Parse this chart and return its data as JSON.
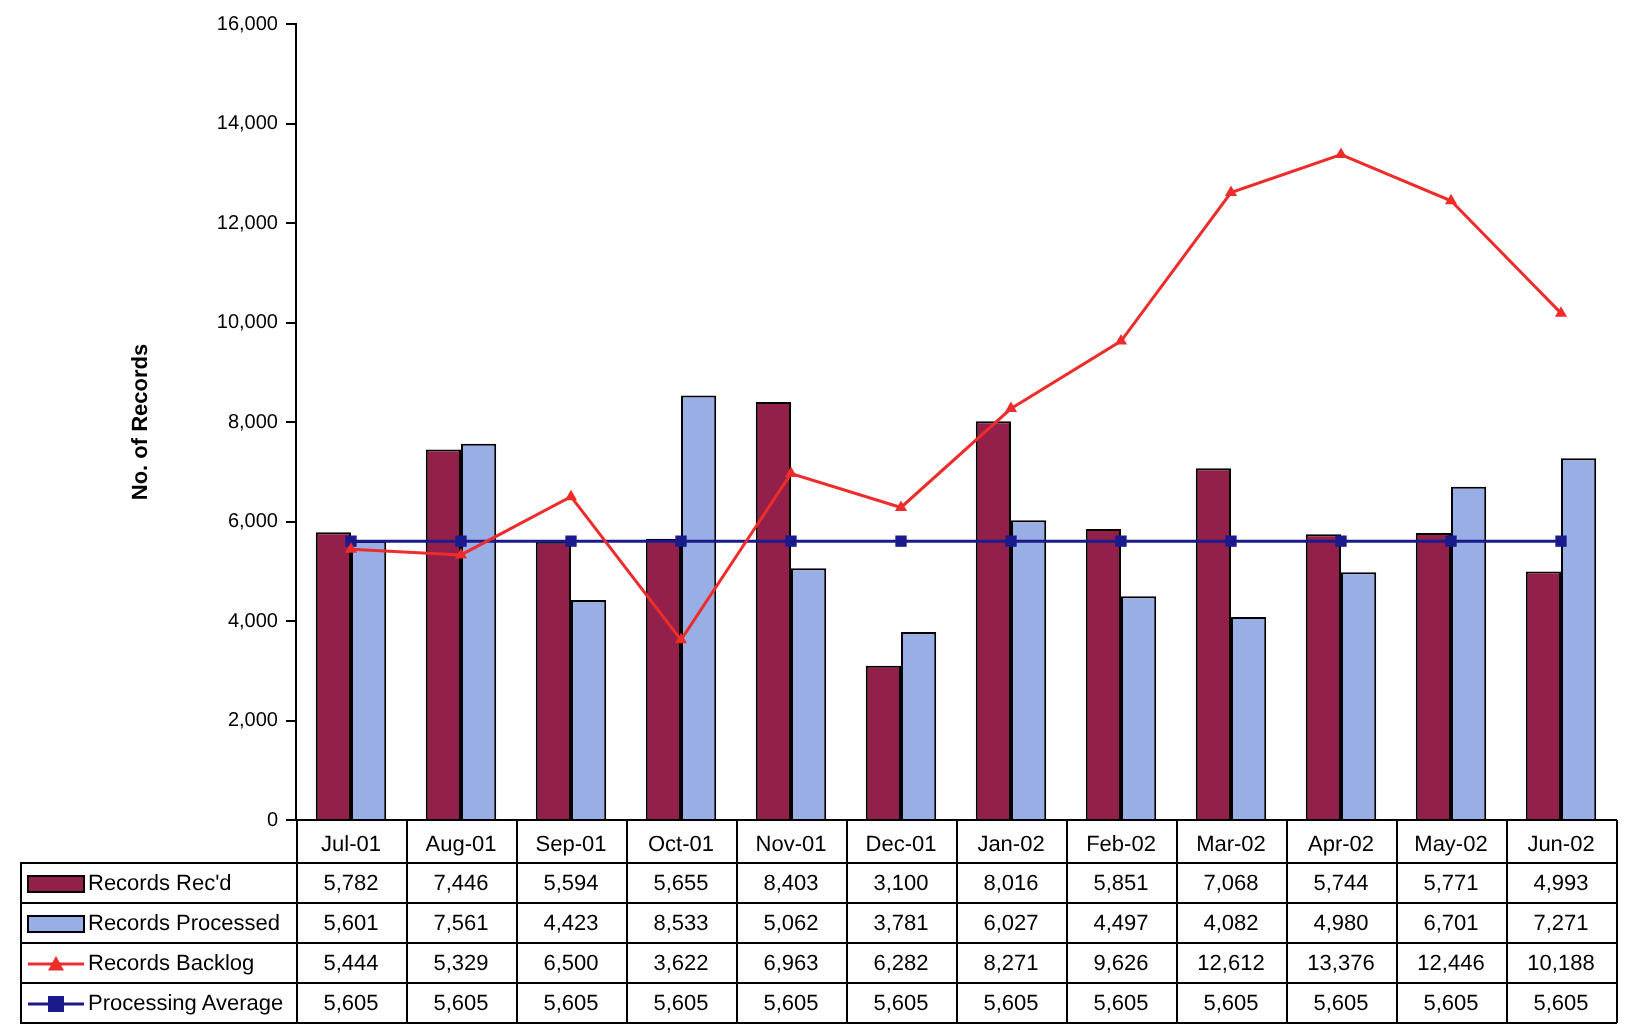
{
  "chart_data": {
    "type": "bar",
    "ylabel": "No. of Records",
    "categories": [
      "Jul-01",
      "Aug-01",
      "Sep-01",
      "Oct-01",
      "Nov-01",
      "Dec-01",
      "Jan-02",
      "Feb-02",
      "Mar-02",
      "Apr-02",
      "May-02",
      "Jun-02"
    ],
    "series": [
      {
        "name": "Records Rec'd",
        "color": "#93204a",
        "values": [
          5782,
          7446,
          5594,
          5655,
          8403,
          3100,
          8016,
          5851,
          7068,
          5744,
          5771,
          4993
        ],
        "value_labels": [
          "5,782",
          "7,446",
          "5,594",
          "5,655",
          "8,403",
          "3,100",
          "8,016",
          "5,851",
          "7,068",
          "5,744",
          "5,771",
          "4,993"
        ]
      },
      {
        "name": "Records Processed",
        "color": "#9aaee6",
        "values": [
          5601,
          7561,
          4423,
          8533,
          5062,
          3781,
          6027,
          4497,
          4082,
          4980,
          6701,
          7271
        ],
        "value_labels": [
          "5,601",
          "7,561",
          "4,423",
          "8,533",
          "5,062",
          "3,781",
          "6,027",
          "4,497",
          "4,082",
          "4,980",
          "6,701",
          "7,271"
        ]
      },
      {
        "name": "Records Backlog",
        "type": "line",
        "marker": "triangle",
        "color": "#ee2c2c",
        "values": [
          5444,
          5329,
          6500,
          3622,
          6963,
          6282,
          8271,
          9626,
          12612,
          13376,
          12446,
          10188
        ],
        "value_labels": [
          "5,444",
          "5,329",
          "6,500",
          "3,622",
          "6,963",
          "6,282",
          "8,271",
          "9,626",
          "12,612",
          "13,376",
          "12,446",
          "10,188"
        ]
      },
      {
        "name": "Processing Average",
        "type": "line",
        "marker": "square",
        "color": "#1a1a8c",
        "values": [
          5605,
          5605,
          5605,
          5605,
          5605,
          5605,
          5605,
          5605,
          5605,
          5605,
          5605,
          5605
        ],
        "value_labels": [
          "5,605",
          "5,605",
          "5,605",
          "5,605",
          "5,605",
          "5,605",
          "5,605",
          "5,605",
          "5,605",
          "5,605",
          "5,605",
          "5,605"
        ]
      }
    ],
    "ylim": [
      0,
      16000
    ],
    "yticks": [
      0,
      {
        "value": 2000,
        "label": "2,000"
      },
      {
        "value": 4000,
        "label": "4,000"
      },
      {
        "value": 6000,
        "label": "6,000"
      },
      {
        "value": 8000,
        "label": "8,000"
      },
      {
        "value": 10000,
        "label": "10,000"
      },
      {
        "value": 12000,
        "label": "12,000"
      },
      {
        "value": 14000,
        "label": "14,000"
      },
      {
        "value": 16000,
        "label": "16,000"
      }
    ],
    "legend": "bottom"
  }
}
